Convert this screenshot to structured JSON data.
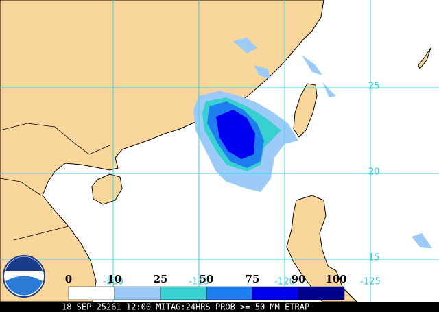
{
  "map_data": {
    "lat_labels": [
      25,
      20,
      15
    ],
    "lon_labels": [
      -110,
      -115,
      -120,
      -125
    ],
    "colorbar": {
      "levels": [
        0,
        10,
        25,
        50,
        75,
        90,
        100
      ],
      "colors": [
        "#ffffff",
        "#9ccbf7",
        "#38d0d0",
        "#1e7ef0",
        "#0000f0",
        "#00008c"
      ]
    },
    "caption": "18 SEP 25261 12:00 MITAG:24HRS PROB >= 50 MM ETRAP"
  }
}
